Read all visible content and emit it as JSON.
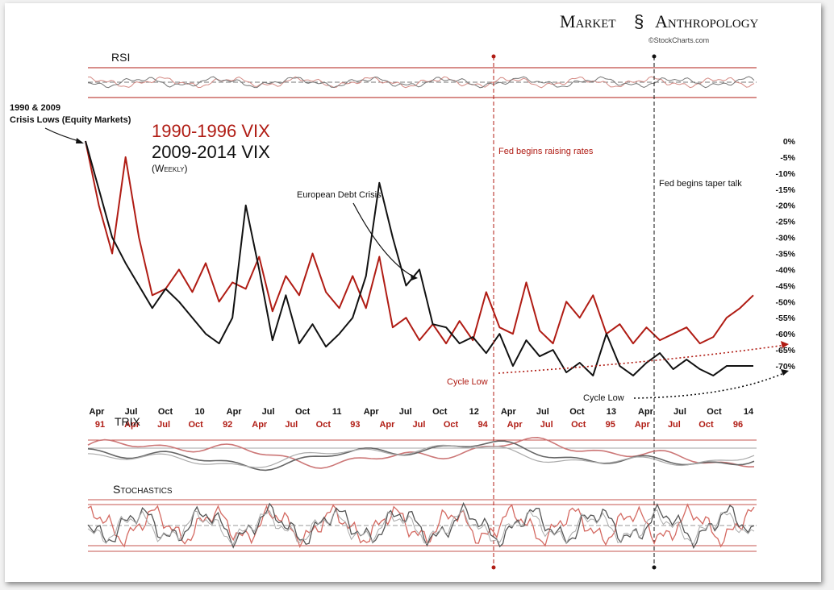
{
  "brand": {
    "word1": "Market",
    "word2": "Anthropology",
    "source": "©StockCharts.com"
  },
  "colors": {
    "red": "#b01c14",
    "black": "#111111",
    "grid": "#999999"
  },
  "chart_data": {
    "type": "line",
    "legend": {
      "red_series": "1990-1996 VIX",
      "black_series": "2009-2014 VIX",
      "frequency": "(Weekly)",
      "placement": "top-left"
    },
    "yaxis": {
      "ticks": [
        "0%",
        "-5%",
        "-10%",
        "-15%",
        "-20%",
        "-25%",
        "-30%",
        "-35%",
        "-40%",
        "-45%",
        "-50%",
        "-55%",
        "-60%",
        "-65%",
        "-70%"
      ],
      "ylim": [
        -72,
        0
      ]
    },
    "xaxis_black": [
      "Apr",
      "Jul",
      "Oct",
      "10",
      "Apr",
      "Jul",
      "Oct",
      "11",
      "Apr",
      "Jul",
      "Oct",
      "12",
      "Apr",
      "Jul",
      "Oct",
      "13",
      "Apr",
      "Jul",
      "Oct",
      "14"
    ],
    "xaxis_red": [
      "91",
      "Apr",
      "Jul",
      "Oct",
      "92",
      "Apr",
      "Jul",
      "Oct",
      "93",
      "Apr",
      "Jul",
      "Oct",
      "94",
      "Apr",
      "Jul",
      "Oct",
      "95",
      "Apr",
      "Jul",
      "Oct",
      "96"
    ],
    "series": [
      {
        "name": "1990-1996 VIX",
        "color": "#b01c14",
        "x": [
          0,
          2,
          4,
          6,
          8,
          10,
          12,
          14,
          16,
          18,
          20,
          22,
          24,
          26,
          28,
          30,
          32,
          34,
          36,
          38,
          40,
          42,
          44,
          46,
          48,
          50,
          52,
          54,
          56,
          58,
          60,
          62,
          64,
          66,
          68,
          70,
          72,
          74,
          76,
          78,
          80,
          82,
          84,
          86,
          88,
          90,
          92,
          94,
          96,
          98,
          100
        ],
        "values": [
          0,
          -20,
          -35,
          -5,
          -30,
          -48,
          -46,
          -40,
          -47,
          -38,
          -50,
          -44,
          -46,
          -36,
          -53,
          -42,
          -48,
          -35,
          -47,
          -52,
          -42,
          -52,
          -36,
          -58,
          -55,
          -62,
          -57,
          -63,
          -56,
          -62,
          -47,
          -58,
          -60,
          -44,
          -59,
          -63,
          -50,
          -55,
          -48,
          -60,
          -57,
          -63,
          -58,
          -62,
          -60,
          -58,
          -63,
          -61,
          -55,
          -52,
          -48
        ]
      },
      {
        "name": "2009-2014 VIX",
        "color": "#111111",
        "x": [
          0,
          2,
          4,
          6,
          8,
          10,
          12,
          14,
          16,
          18,
          20,
          22,
          24,
          26,
          28,
          30,
          32,
          34,
          36,
          38,
          40,
          42,
          44,
          46,
          48,
          50,
          52,
          54,
          56,
          58,
          60,
          62,
          64,
          66,
          68,
          70,
          72,
          74,
          76,
          78,
          80,
          82,
          84,
          86,
          88,
          90,
          92,
          94,
          96,
          98,
          100
        ],
        "values": [
          0,
          -15,
          -30,
          -38,
          -45,
          -52,
          -46,
          -50,
          -55,
          -60,
          -63,
          -55,
          -20,
          -40,
          -62,
          -48,
          -63,
          -57,
          -64,
          -60,
          -55,
          -42,
          -13,
          -30,
          -45,
          -40,
          -57,
          -58,
          -63,
          -61,
          -66,
          -60,
          -70,
          -62,
          -67,
          -65,
          -72,
          -69,
          -73,
          -60,
          -70,
          -73,
          -69,
          -66,
          -71,
          -68,
          -71,
          -73,
          -70,
          -70,
          -70
        ]
      }
    ],
    "annotations": {
      "crisis_lows": [
        "1990 & 2009",
        "Crisis Lows (Equity Markets)"
      ],
      "debt_crisis": "European Debt Crisis",
      "fed_rates": "Fed begins raising rates",
      "fed_taper": "Fed begins taper talk",
      "cycle_low_red": "Cycle Low",
      "cycle_low_black": "Cycle Low"
    },
    "indicators": {
      "rsi": "RSI",
      "trix": "TRIX",
      "stochastics": "Stochastics"
    }
  }
}
